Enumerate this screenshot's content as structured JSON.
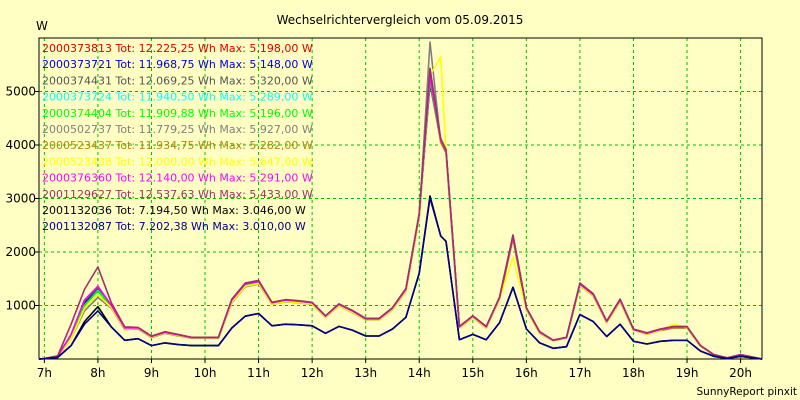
{
  "chart_data": {
    "type": "line",
    "title": "Wechselrichtervergleich vom 05.09.2015",
    "ylabel": "W",
    "xlabel": "",
    "x_ticks": [
      "7h",
      "8h",
      "9h",
      "10h",
      "11h",
      "12h",
      "13h",
      "14h",
      "15h",
      "16h",
      "17h",
      "18h",
      "19h",
      "20h"
    ],
    "xlim": [
      6.9,
      20.4
    ],
    "ylim": [
      0,
      6000
    ],
    "y_ticks": [
      1000,
      2000,
      3000,
      4000,
      5000
    ],
    "grid": true,
    "legend_position": "top-left",
    "footer": "SunnyReport pinxit",
    "x": [
      6.9,
      7.0,
      7.25,
      7.5,
      7.75,
      8.0,
      8.25,
      8.5,
      8.75,
      9.0,
      9.25,
      9.5,
      9.75,
      10.0,
      10.25,
      10.5,
      10.75,
      11.0,
      11.25,
      11.5,
      11.75,
      12.0,
      12.25,
      12.5,
      12.75,
      13.0,
      13.25,
      13.5,
      13.75,
      14.0,
      14.2,
      14.4,
      14.5,
      14.75,
      15.0,
      15.25,
      15.5,
      15.75,
      16.0,
      16.25,
      16.5,
      16.75,
      17.0,
      17.25,
      17.5,
      17.75,
      18.0,
      18.25,
      18.5,
      18.75,
      19.0,
      19.25,
      19.5,
      19.75,
      20.0,
      20.4
    ],
    "series": [
      {
        "name": "2000373813",
        "legend": "2000373813 Tot: 12.225,25 Wh Max: 5.198,00 W",
        "color": "#dd0000",
        "values": [
          0,
          10,
          50,
          450,
          1100,
          1350,
          1000,
          580,
          580,
          420,
          500,
          450,
          400,
          400,
          400,
          1100,
          1400,
          1450,
          1050,
          1100,
          1080,
          1050,
          800,
          1020,
          900,
          750,
          750,
          950,
          1300,
          2700,
          5200,
          4100,
          3900,
          600,
          800,
          600,
          1150,
          2300,
          950,
          500,
          350,
          400,
          1400,
          1200,
          700,
          1100,
          550,
          480,
          550,
          600,
          600,
          250,
          80,
          20,
          80,
          0
        ]
      },
      {
        "name": "2000373721",
        "legend": "2000373721 Tot: 11.968,75 Wh Max: 5.148,00 W",
        "color": "#0000dd",
        "values": [
          0,
          10,
          50,
          450,
          1050,
          1300,
          1000,
          580,
          580,
          420,
          500,
          450,
          400,
          400,
          400,
          1080,
          1380,
          1430,
          1040,
          1090,
          1070,
          1040,
          800,
          1010,
          890,
          740,
          740,
          940,
          1290,
          2680,
          5148,
          4080,
          3880,
          600,
          790,
          600,
          1140,
          2280,
          940,
          500,
          350,
          400,
          1390,
          1190,
          700,
          1090,
          550,
          480,
          540,
          590,
          590,
          250,
          80,
          20,
          80,
          0
        ]
      },
      {
        "name": "2000374431",
        "legend": "2000374431 Tot: 12.069,25 Wh Max: 5.320,00 W",
        "color": "#555555",
        "values": [
          0,
          10,
          50,
          450,
          1080,
          1320,
          1000,
          580,
          580,
          420,
          500,
          450,
          400,
          400,
          400,
          1090,
          1390,
          1440,
          1045,
          1095,
          1075,
          1045,
          800,
          1015,
          895,
          745,
          745,
          945,
          1295,
          2690,
          5320,
          4090,
          3890,
          600,
          795,
          600,
          1145,
          2290,
          945,
          500,
          350,
          400,
          1395,
          1195,
          700,
          1095,
          550,
          480,
          545,
          595,
          595,
          250,
          80,
          20,
          80,
          0
        ]
      },
      {
        "name": "2000373724",
        "legend": "2000373724 Tot: 11.940,50 Wh Max: 5.289,00 W",
        "color": "#00ffff",
        "values": [
          0,
          10,
          50,
          420,
          1000,
          1280,
          980,
          560,
          560,
          410,
          490,
          440,
          390,
          390,
          390,
          1070,
          1370,
          1420,
          1030,
          1080,
          1060,
          1030,
          790,
          1000,
          880,
          735,
          735,
          930,
          1280,
          2660,
          5289,
          4070,
          3870,
          590,
          780,
          590,
          1130,
          2270,
          930,
          490,
          345,
          395,
          1380,
          1180,
          690,
          1080,
          545,
          470,
          535,
          585,
          585,
          245,
          78,
          20,
          78,
          0
        ]
      },
      {
        "name": "2000374404",
        "legend": "2000374404 Tot: 11.909,88 Wh Max: 5.196,00 W",
        "color": "#00ff00",
        "values": [
          0,
          10,
          50,
          420,
          1000,
          1270,
          980,
          560,
          560,
          410,
          490,
          440,
          390,
          390,
          390,
          1070,
          1370,
          1420,
          1030,
          1080,
          1060,
          1030,
          790,
          1000,
          880,
          735,
          735,
          930,
          1280,
          2660,
          5196,
          4060,
          3860,
          590,
          780,
          590,
          1130,
          2260,
          930,
          490,
          345,
          395,
          1380,
          1180,
          690,
          1080,
          545,
          470,
          535,
          585,
          585,
          245,
          78,
          20,
          78,
          0
        ]
      },
      {
        "name": "2000502737",
        "legend": "2000502737 Tot: 11.779,25 Wh Max: 5.927,00 W",
        "color": "#808080",
        "values": [
          0,
          10,
          40,
          380,
          900,
          1150,
          950,
          550,
          560,
          400,
          480,
          430,
          390,
          390,
          390,
          1050,
          1350,
          1400,
          1020,
          1070,
          1050,
          1020,
          780,
          990,
          870,
          730,
          730,
          920,
          1270,
          2650,
          5927,
          4050,
          3850,
          580,
          770,
          580,
          1120,
          2250,
          920,
          480,
          340,
          390,
          1370,
          1170,
          680,
          1070,
          540,
          460,
          530,
          580,
          580,
          240,
          75,
          20,
          75,
          0
        ]
      },
      {
        "name": "2000523437",
        "legend": "2000523437 Tot: 11.934,75 Wh Max: 5.282,00 W",
        "color": "#b8860b",
        "values": [
          0,
          10,
          40,
          380,
          950,
          1200,
          960,
          560,
          570,
          410,
          490,
          440,
          395,
          395,
          395,
          1060,
          1360,
          1410,
          1025,
          1075,
          1055,
          1025,
          785,
          995,
          875,
          735,
          735,
          925,
          1275,
          2655,
          5282,
          4055,
          3855,
          585,
          775,
          585,
          1125,
          2255,
          925,
          485,
          342,
          392,
          1375,
          1175,
          685,
          1075,
          542,
          465,
          532,
          582,
          582,
          242,
          76,
          20,
          76,
          0
        ]
      },
      {
        "name": "2000523438",
        "legend": "2000523438 Tot: 12.000,00 Wh Max: 5.647,00 W",
        "color": "#ffff00",
        "values": [
          0,
          10,
          40,
          380,
          950,
          1200,
          960,
          560,
          570,
          410,
          490,
          440,
          395,
          395,
          395,
          1060,
          1360,
          1410,
          1025,
          1075,
          1055,
          1025,
          785,
          995,
          875,
          735,
          735,
          925,
          1275,
          2655,
          5300,
          5647,
          3855,
          585,
          775,
          585,
          1125,
          1900,
          925,
          485,
          342,
          392,
          1375,
          1175,
          685,
          1075,
          542,
          465,
          532,
          650,
          582,
          242,
          76,
          20,
          76,
          0
        ]
      },
      {
        "name": "2000376360",
        "legend": "2000376360 Tot: 12.140,00 Wh Max: 5.291,00 W",
        "color": "#ff00ff",
        "values": [
          0,
          10,
          50,
          460,
          1100,
          1360,
          1000,
          580,
          580,
          420,
          500,
          450,
          400,
          400,
          400,
          1100,
          1400,
          1450,
          1050,
          1100,
          1080,
          1050,
          800,
          1020,
          900,
          750,
          750,
          950,
          1300,
          2700,
          5291,
          4100,
          3900,
          600,
          800,
          600,
          1150,
          2300,
          950,
          500,
          350,
          400,
          1400,
          1200,
          700,
          1100,
          550,
          480,
          550,
          600,
          600,
          250,
          80,
          20,
          80,
          0
        ]
      },
      {
        "name": "2001129627",
        "legend": "2001129627 Tot: 12.537,63 Wh Max: 5.433,00 W",
        "color": "#a0306a",
        "values": [
          0,
          10,
          60,
          650,
          1300,
          1720,
          1050,
          600,
          590,
          430,
          510,
          460,
          405,
          405,
          405,
          1120,
          1420,
          1470,
          1060,
          1110,
          1090,
          1060,
          810,
          1030,
          910,
          760,
          760,
          960,
          1320,
          2720,
          5433,
          4120,
          3920,
          610,
          810,
          610,
          1160,
          2320,
          960,
          510,
          355,
          405,
          1420,
          1220,
          710,
          1120,
          560,
          490,
          560,
          610,
          610,
          255,
          82,
          20,
          82,
          0
        ]
      },
      {
        "name": "2001132036",
        "legend": "2001132036 Tot: 7.194,50 Wh Max: 3.046,00 W",
        "color": "#000000",
        "values": [
          0,
          5,
          30,
          250,
          700,
          980,
          600,
          350,
          380,
          250,
          300,
          270,
          250,
          250,
          250,
          580,
          800,
          850,
          620,
          650,
          640,
          620,
          480,
          610,
          540,
          430,
          430,
          560,
          780,
          1600,
          3046,
          2300,
          2200,
          360,
          460,
          360,
          680,
          1340,
          560,
          300,
          200,
          230,
          830,
          700,
          420,
          650,
          330,
          280,
          330,
          350,
          350,
          150,
          50,
          10,
          50,
          0
        ]
      },
      {
        "name": "2001132087",
        "legend": "2001132087 Tot: 7.202,38 Wh Max: 3.010,00 W",
        "color": "#00008b",
        "values": [
          0,
          5,
          30,
          250,
          650,
          900,
          600,
          350,
          380,
          250,
          300,
          270,
          250,
          250,
          250,
          580,
          800,
          850,
          620,
          650,
          640,
          620,
          480,
          610,
          540,
          430,
          430,
          560,
          780,
          1600,
          3010,
          2300,
          2200,
          360,
          460,
          360,
          680,
          1340,
          560,
          300,
          200,
          230,
          830,
          700,
          420,
          650,
          330,
          280,
          330,
          350,
          350,
          150,
          50,
          10,
          50,
          0
        ]
      }
    ]
  }
}
